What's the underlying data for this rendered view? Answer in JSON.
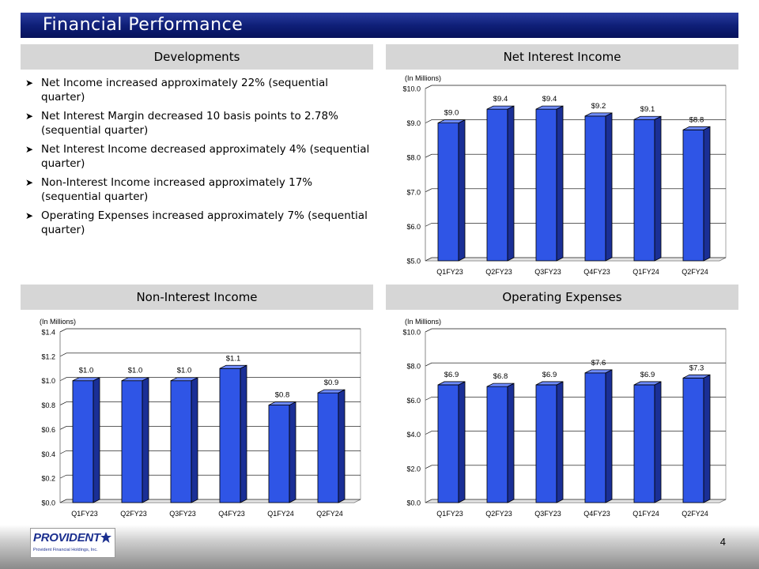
{
  "page": {
    "title": "Financial Performance",
    "page_number": "4"
  },
  "developments": {
    "header": "Developments",
    "bullets": [
      "Net Income increased approximately 22% (sequential quarter)",
      "Net Interest Margin decreased 10 basis points to 2.78% (sequential quarter)",
      "Net Interest Income decreased approximately 4% (sequential quarter)",
      "Non-Interest Income increased approximately 17% (sequential quarter)",
      "Operating Expenses increased approximately 7% (sequential quarter)"
    ]
  },
  "logo": {
    "name": "PROVIDENT",
    "subtitle": "Provident Financial Holdings, Inc."
  },
  "colors": {
    "bar_front": "#2f55e6",
    "bar_side": "#1a2f96",
    "bar_top": "#6f8cff"
  },
  "chart_data": [
    {
      "id": "net-interest-income",
      "type": "bar",
      "title": "Net Interest Income",
      "unit_note": "(In Millions)",
      "categories": [
        "Q1FY23",
        "Q2FY23",
        "Q3FY23",
        "Q4FY23",
        "Q1FY24",
        "Q2FY24"
      ],
      "values": [
        9.0,
        9.4,
        9.4,
        9.2,
        9.1,
        8.8
      ],
      "labels": [
        "$9.0",
        "$9.4",
        "$9.4",
        "$9.2",
        "$9.1",
        "$8.8"
      ],
      "ylim": [
        5.0,
        10.0
      ],
      "yticks": [
        5.0,
        6.0,
        7.0,
        8.0,
        9.0,
        10.0
      ],
      "ytick_labels": [
        "$5.0",
        "$6.0",
        "$7.0",
        "$8.0",
        "$9.0",
        "$10.0"
      ],
      "grid": true
    },
    {
      "id": "non-interest-income",
      "type": "bar",
      "title": "Non-Interest Income",
      "unit_note": "(In Millions)",
      "categories": [
        "Q1FY23",
        "Q2FY23",
        "Q3FY23",
        "Q4FY23",
        "Q1FY24",
        "Q2FY24"
      ],
      "values": [
        1.0,
        1.0,
        1.0,
        1.1,
        0.8,
        0.9
      ],
      "labels": [
        "$1.0",
        "$1.0",
        "$1.0",
        "$1.1",
        "$0.8",
        "$0.9"
      ],
      "ylim": [
        0.0,
        1.4
      ],
      "yticks": [
        0.0,
        0.2,
        0.4,
        0.6,
        0.8,
        1.0,
        1.2,
        1.4
      ],
      "ytick_labels": [
        "$0.0",
        "$0.2",
        "$0.4",
        "$0.6",
        "$0.8",
        "$1.0",
        "$1.2",
        "$1.4"
      ],
      "grid": true
    },
    {
      "id": "operating-expenses",
      "type": "bar",
      "title": "Operating Expenses",
      "unit_note": "(In Millions)",
      "categories": [
        "Q1FY23",
        "Q2FY23",
        "Q3FY23",
        "Q4FY23",
        "Q1FY24",
        "Q2FY24"
      ],
      "values": [
        6.9,
        6.8,
        6.9,
        7.6,
        6.9,
        7.3
      ],
      "labels": [
        "$6.9",
        "$6.8",
        "$6.9",
        "$7.6",
        "$6.9",
        "$7.3"
      ],
      "ylim": [
        0.0,
        10.0
      ],
      "yticks": [
        0.0,
        2.0,
        4.0,
        6.0,
        8.0,
        10.0
      ],
      "ytick_labels": [
        "$0.0",
        "$2.0",
        "$4.0",
        "$6.0",
        "$8.0",
        "$10.0"
      ],
      "grid": true
    }
  ]
}
